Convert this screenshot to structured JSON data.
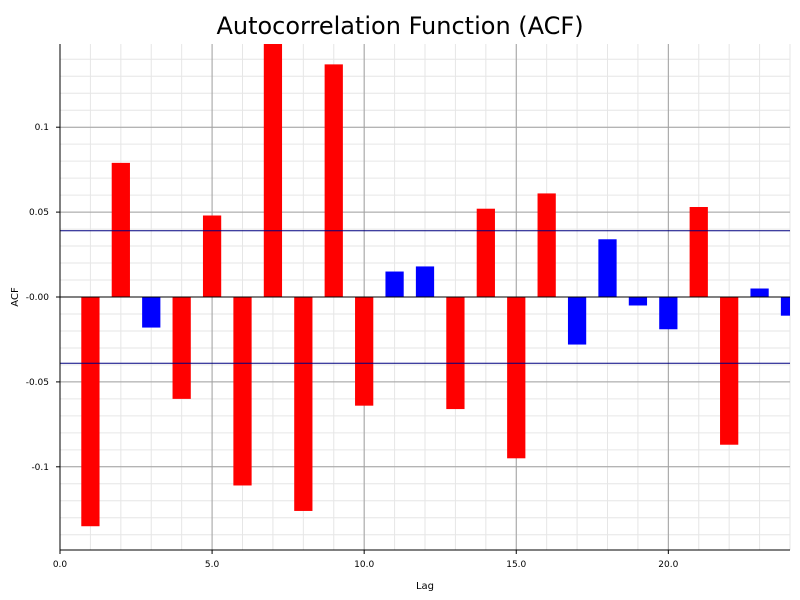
{
  "chart_data": {
    "type": "bar",
    "title": "Autocorrelation Function (ACF)",
    "xlabel": "Lag",
    "ylabel": "ACF",
    "xlim": [
      0,
      24
    ],
    "ylim": [
      -0.149,
      0.149
    ],
    "grid": true,
    "x": [
      1,
      2,
      3,
      4,
      5,
      6,
      7,
      8,
      9,
      10,
      11,
      12,
      13,
      14,
      15,
      16,
      17,
      18,
      19,
      20,
      21,
      22,
      23,
      24
    ],
    "values": [
      -0.135,
      0.079,
      -0.018,
      -0.06,
      0.048,
      -0.111,
      0.15,
      -0.126,
      0.137,
      -0.064,
      0.015,
      0.018,
      -0.066,
      0.052,
      -0.095,
      0.061,
      -0.028,
      0.034,
      -0.005,
      -0.019,
      0.053,
      -0.087,
      0.005,
      -0.011
    ],
    "bar_colors": [
      "#ff0000",
      "#ff0000",
      "#0000ff",
      "#ff0000",
      "#ff0000",
      "#ff0000",
      "#ff0000",
      "#ff0000",
      "#ff0000",
      "#ff0000",
      "#0000ff",
      "#0000ff",
      "#ff0000",
      "#ff0000",
      "#ff0000",
      "#ff0000",
      "#0000ff",
      "#0000ff",
      "#0000ff",
      "#0000ff",
      "#ff0000",
      "#ff0000",
      "#0000ff",
      "#0000ff"
    ],
    "confidence_band": [
      -0.039,
      0.039
    ],
    "confidence_color": "#000080",
    "xticks": [
      0,
      5,
      10,
      15,
      20
    ],
    "xtick_labels": [
      "0.0",
      "5.0",
      "10.0",
      "15.0",
      "20.0"
    ],
    "yticks": [
      -0.1,
      -0.05,
      0,
      0.05,
      0.1
    ],
    "ytick_labels": [
      "-0.1",
      "-0.05",
      "-0.00",
      "0.05",
      "0.1"
    ]
  }
}
